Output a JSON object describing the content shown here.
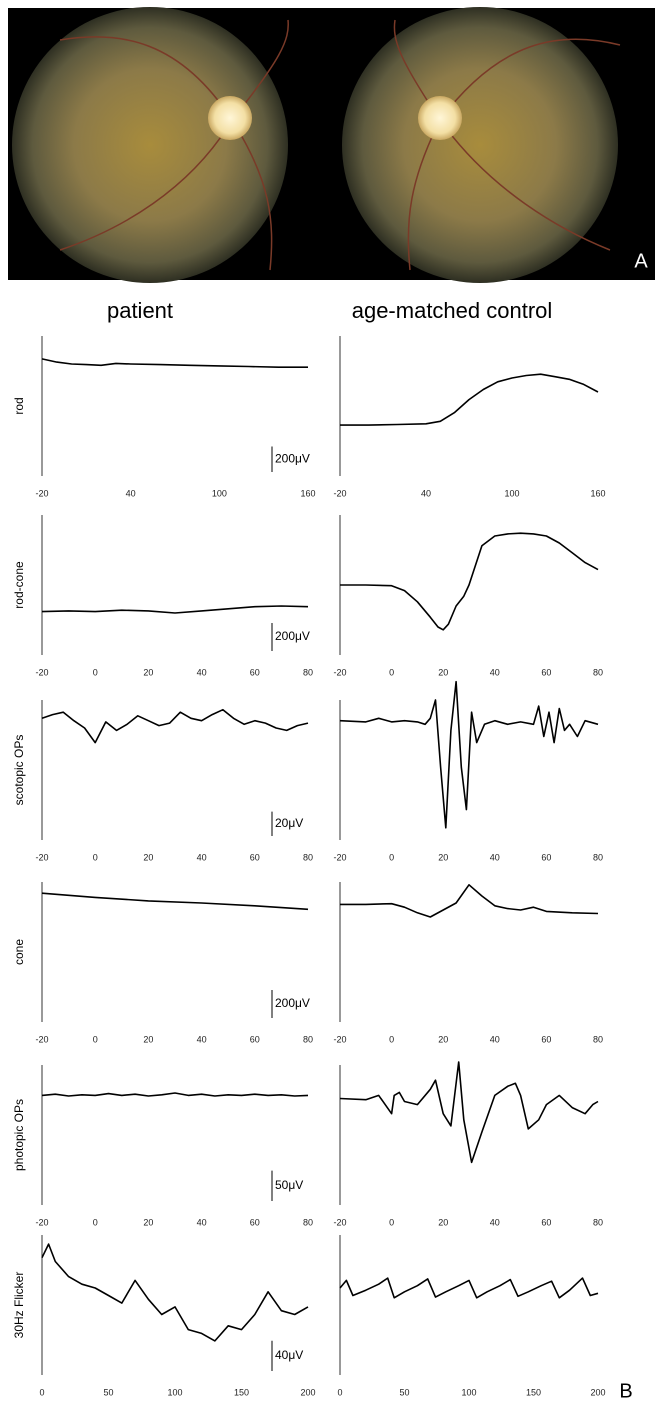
{
  "panel_labels": [
    "A",
    "B"
  ],
  "column_titles": [
    "patient",
    "age-matched control"
  ],
  "chart_data": [
    {
      "type": "line",
      "ylabel": "rod",
      "x": [
        -20,
        -10,
        0,
        10,
        20,
        30,
        40,
        60,
        80,
        100,
        120,
        140,
        160
      ],
      "values": [
        120,
        95,
        80,
        75,
        70,
        85,
        80,
        75,
        70,
        65,
        60,
        55,
        55
      ],
      "xlim": [
        -20,
        160
      ],
      "xticks": [
        -20,
        40,
        100,
        160
      ],
      "ylim": [
        -800,
        300
      ],
      "color": "#000000",
      "scale_bar": {
        "value": 200,
        "label": "200μV"
      }
    },
    {
      "type": "line",
      "x": [
        -20,
        0,
        20,
        40,
        50,
        60,
        70,
        80,
        90,
        100,
        110,
        120,
        130,
        140,
        150,
        160
      ],
      "values": [
        -400,
        -400,
        -395,
        -390,
        -370,
        -300,
        -200,
        -120,
        -60,
        -30,
        -10,
        0,
        -20,
        -40,
        -80,
        -140
      ],
      "xlim": [
        -20,
        160
      ],
      "xticks": [
        -20,
        40,
        100,
        160
      ],
      "ylim": [
        -800,
        300
      ],
      "color": "#000000"
    },
    {
      "type": "line",
      "ylabel": "rod-cone",
      "x": [
        -20,
        -10,
        0,
        10,
        20,
        30,
        40,
        50,
        60,
        70,
        80
      ],
      "values": [
        -290,
        -285,
        -290,
        -280,
        -285,
        -300,
        -285,
        -270,
        -255,
        -250,
        -255
      ],
      "xlim": [
        -20,
        80
      ],
      "xticks": [
        -20,
        0,
        20,
        40,
        60,
        80
      ],
      "ylim": [
        -600,
        400
      ],
      "color": "#000000",
      "scale_bar": {
        "value": 200,
        "label": "200μV"
      }
    },
    {
      "type": "line",
      "x": [
        -20,
        -10,
        0,
        5,
        10,
        15,
        18,
        20,
        22,
        25,
        28,
        30,
        35,
        40,
        45,
        50,
        55,
        60,
        65,
        70,
        75,
        80
      ],
      "values": [
        -100,
        -100,
        -105,
        -140,
        -220,
        -330,
        -400,
        -420,
        -380,
        -250,
        -180,
        -100,
        180,
        250,
        265,
        270,
        265,
        250,
        200,
        130,
        60,
        10
      ],
      "xlim": [
        -20,
        80
      ],
      "xticks": [
        -20,
        0,
        20,
        40,
        60,
        80
      ],
      "ylim": [
        -600,
        400
      ],
      "color": "#000000"
    },
    {
      "type": "line",
      "ylabel": "scotopic OPs",
      "x": [
        -20,
        -16,
        -12,
        -8,
        -4,
        0,
        4,
        8,
        12,
        16,
        20,
        24,
        28,
        32,
        36,
        40,
        44,
        48,
        52,
        56,
        60,
        64,
        68,
        72,
        76,
        80
      ],
      "values": [
        30,
        33,
        35,
        28,
        22,
        10,
        27,
        20,
        25,
        32,
        28,
        24,
        26,
        35,
        30,
        28,
        33,
        37,
        30,
        25,
        28,
        26,
        22,
        20,
        24,
        26
      ],
      "xlim": [
        -20,
        80
      ],
      "xticks": [
        -20,
        0,
        20,
        40,
        60,
        80
      ],
      "ylim": [
        -70,
        45
      ],
      "color": "#000000",
      "scale_bar": {
        "value": 20,
        "label": "20μV"
      }
    },
    {
      "type": "line",
      "x": [
        -20,
        -10,
        -5,
        0,
        5,
        10,
        13,
        15,
        17,
        19,
        21,
        23,
        25,
        27,
        29,
        31,
        33,
        36,
        40,
        45,
        50,
        55,
        57,
        59,
        61,
        63,
        65,
        67,
        69,
        72,
        75,
        80
      ],
      "values": [
        28,
        27,
        30,
        27,
        28,
        27,
        25,
        30,
        45,
        -10,
        -60,
        20,
        60,
        -10,
        -45,
        35,
        10,
        25,
        28,
        25,
        27,
        25,
        40,
        15,
        35,
        10,
        38,
        20,
        25,
        15,
        28,
        25
      ],
      "xlim": [
        -20,
        80
      ],
      "xticks": [
        -20,
        0,
        20,
        40,
        60,
        80
      ],
      "ylim": [
        -70,
        45
      ],
      "color": "#000000"
    },
    {
      "type": "line",
      "ylabel": "cone",
      "x": [
        -20,
        0,
        20,
        40,
        60,
        80
      ],
      "values": [
        220,
        190,
        165,
        150,
        130,
        105
      ],
      "xlim": [
        -20,
        80
      ],
      "xticks": [
        -20,
        0,
        20,
        40,
        60,
        80
      ],
      "ylim": [
        -700,
        300
      ],
      "color": "#000000",
      "scale_bar": {
        "value": 200,
        "label": "200μV"
      }
    },
    {
      "type": "line",
      "x": [
        -20,
        -10,
        0,
        5,
        10,
        15,
        20,
        25,
        30,
        35,
        40,
        45,
        50,
        55,
        60,
        70,
        80
      ],
      "values": [
        140,
        140,
        145,
        120,
        80,
        50,
        100,
        150,
        280,
        200,
        130,
        110,
        100,
        120,
        90,
        80,
        75
      ],
      "xlim": [
        -20,
        80
      ],
      "xticks": [
        -20,
        0,
        20,
        40,
        60,
        80
      ],
      "ylim": [
        -700,
        300
      ],
      "color": "#000000"
    },
    {
      "type": "line",
      "ylabel": "photopic OPs",
      "x": [
        -20,
        -15,
        -10,
        -5,
        0,
        5,
        10,
        15,
        20,
        25,
        30,
        35,
        40,
        45,
        50,
        55,
        60,
        65,
        70,
        75,
        80
      ],
      "values": [
        10,
        12,
        9,
        11,
        10,
        13,
        10,
        12,
        9,
        11,
        14,
        10,
        12,
        9,
        11,
        10,
        12,
        10,
        11,
        9,
        10
      ],
      "xlim": [
        -20,
        80
      ],
      "xticks": [
        -20,
        0,
        20,
        40,
        60,
        80
      ],
      "ylim": [
        -170,
        60
      ],
      "color": "#000000",
      "scale_bar": {
        "value": 50,
        "label": "50μV"
      }
    },
    {
      "type": "line",
      "x": [
        -20,
        -10,
        -5,
        0,
        1,
        3,
        5,
        10,
        15,
        17,
        20,
        23,
        25,
        26,
        28,
        31,
        35,
        40,
        45,
        48,
        50,
        53,
        57,
        60,
        65,
        70,
        75,
        78,
        80
      ],
      "values": [
        5,
        3,
        10,
        -20,
        10,
        15,
        0,
        -5,
        20,
        35,
        -20,
        -40,
        30,
        65,
        -30,
        -100,
        -50,
        10,
        25,
        30,
        10,
        -45,
        -30,
        -5,
        10,
        -10,
        -20,
        -5,
        0
      ],
      "xlim": [
        -20,
        80
      ],
      "xticks": [
        -20,
        0,
        20,
        40,
        60,
        80
      ],
      "ylim": [
        -170,
        60
      ],
      "color": "#000000"
    },
    {
      "type": "line",
      "ylabel": "30Hz Flicker",
      "x": [
        0,
        5,
        10,
        20,
        30,
        40,
        50,
        60,
        70,
        80,
        90,
        100,
        110,
        120,
        130,
        140,
        150,
        160,
        170,
        180,
        190,
        200
      ],
      "values": [
        15,
        33,
        10,
        -10,
        -20,
        -25,
        -35,
        -45,
        -15,
        -40,
        -60,
        -50,
        -80,
        -85,
        -95,
        -75,
        -80,
        -60,
        -30,
        -55,
        -60,
        -50
      ],
      "xlim": [
        0,
        200
      ],
      "xticks": [
        0,
        50,
        100,
        150,
        200
      ],
      "ylim": [
        -140,
        45
      ],
      "color": "#000000",
      "scale_bar": {
        "value": 40,
        "label": "40μV"
      }
    },
    {
      "type": "line",
      "x": [
        0,
        5,
        10,
        20,
        30,
        37,
        42,
        50,
        60,
        68,
        74,
        82,
        92,
        100,
        106,
        114,
        124,
        132,
        138,
        146,
        156,
        164,
        170,
        178,
        188,
        194,
        200
      ],
      "values": [
        -25,
        -15,
        -35,
        -28,
        -20,
        -12,
        -38,
        -30,
        -22,
        -13,
        -37,
        -30,
        -22,
        -15,
        -38,
        -30,
        -22,
        -14,
        -36,
        -30,
        -22,
        -16,
        -38,
        -28,
        -12,
        -35,
        -32
      ],
      "xlim": [
        0,
        200
      ],
      "xticks": [
        0,
        50,
        100,
        150,
        200
      ],
      "ylim": [
        -140,
        45
      ],
      "color": "#000000"
    }
  ]
}
